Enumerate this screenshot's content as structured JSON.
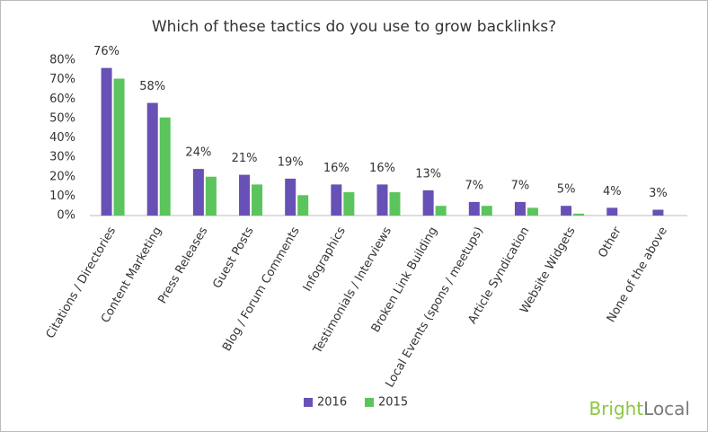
{
  "chart_data": {
    "type": "bar",
    "title": "Which of these tactics do you use to grow backlinks?",
    "categories": [
      "Citations / Directories",
      "Content Marketing",
      "Press Releases",
      "Guest Posts",
      "Blog / Forum Comments",
      "Infographics",
      "Testimonials / Interviews",
      "Broken Link Building",
      "Local Events (spons / meetups)",
      "Article Syndication",
      "Website Widgets",
      "Other",
      "None of the above"
    ],
    "series": [
      {
        "name": "2016",
        "color": "#6751b6",
        "values": [
          76,
          58,
          24,
          21,
          19,
          16,
          16,
          13,
          7,
          7,
          5,
          4,
          3
        ],
        "value_labels": [
          "76%",
          "58%",
          "24%",
          "21%",
          "19%",
          "16%",
          "16%",
          "13%",
          "7%",
          "7%",
          "5%",
          "4%",
          "3%"
        ]
      },
      {
        "name": "2015",
        "color": "#5cc45c",
        "values": [
          70.5,
          50.5,
          20,
          16,
          10.5,
          12,
          12,
          5,
          5,
          4,
          1,
          0,
          0
        ]
      }
    ],
    "ylim": [
      0,
      80
    ],
    "yticks": [
      {
        "value": 0,
        "label": "0%"
      },
      {
        "value": 10,
        "label": "10%"
      },
      {
        "value": 20,
        "label": "20%"
      },
      {
        "value": 30,
        "label": "30%"
      },
      {
        "value": 40,
        "label": "40%"
      },
      {
        "value": 50,
        "label": "50%"
      },
      {
        "value": 60,
        "label": "60%"
      },
      {
        "value": 70,
        "label": "70%"
      },
      {
        "value": 80,
        "label": "80%"
      }
    ],
    "grid": false,
    "legend": "bottom",
    "brand": [
      "Bright",
      "Local"
    ]
  }
}
